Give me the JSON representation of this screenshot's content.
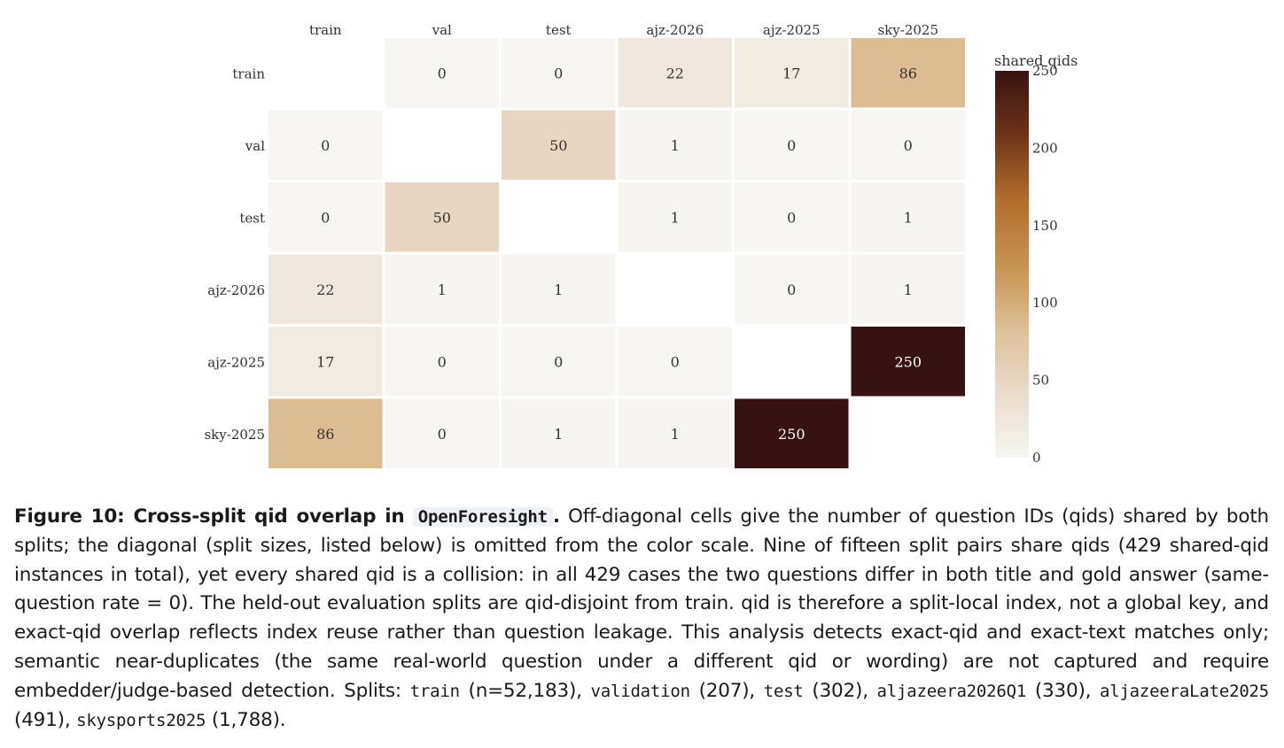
{
  "chart_data": {
    "type": "heatmap",
    "rows": [
      "train",
      "val",
      "test",
      "ajz-2026",
      "ajz-2025",
      "sky-2025"
    ],
    "columns": [
      "train",
      "val",
      "test",
      "ajz-2026",
      "ajz-2025",
      "sky-2025"
    ],
    "values": [
      [
        null,
        0,
        0,
        22,
        17,
        86
      ],
      [
        0,
        null,
        50,
        1,
        0,
        0
      ],
      [
        0,
        50,
        null,
        1,
        0,
        1
      ],
      [
        22,
        1,
        1,
        null,
        0,
        1
      ],
      [
        17,
        0,
        0,
        0,
        null,
        250
      ],
      [
        86,
        0,
        1,
        1,
        250,
        null
      ]
    ],
    "colorbar": {
      "title": "shared qids",
      "range": [
        0,
        250
      ],
      "ticks": [
        0,
        50,
        100,
        150,
        200,
        250
      ],
      "colors": [
        "#f7f6f2",
        "#e9dccc",
        "#ddbf95",
        "#c7924f",
        "#b36d2d",
        "#6e3417",
        "#381212"
      ]
    }
  },
  "caption": {
    "label": "Figure 10: Cross-split qid overlap in",
    "dataset": "OpenForesight",
    "label_end": ".",
    "text_1": " Off-diagonal cells give the number of question IDs (qids) shared by both splits; the diagonal (split sizes, listed below) is omitted from the color scale. Nine of fifteen split pairs share qids (429 shared-qid instances in total), yet every shared qid is a collision: in all 429 cases the two questions differ in both title and gold answer (same-question rate = 0). The held-out evaluation splits are qid-disjoint from train. qid is therefore a split-local index, not a global key, and exact-qid overlap reflects index reuse rather than question leakage. This analysis detects exact-qid and exact-text matches only; semantic near-duplicates (the same real-world question under a different qid or wording) are not captured and require embedder/judge-based detection. Splits: ",
    "splits": [
      {
        "name": "train",
        "size": " (n=52,183), "
      },
      {
        "name": "validation",
        "size": " (207), "
      },
      {
        "name": "test",
        "size": " (302), "
      },
      {
        "name": "aljazeera2026Q1",
        "size": " (330), "
      },
      {
        "name": "aljazeeraLate2025",
        "size": " (491), "
      },
      {
        "name": "skysports2025",
        "size": " (1,788)."
      }
    ]
  }
}
